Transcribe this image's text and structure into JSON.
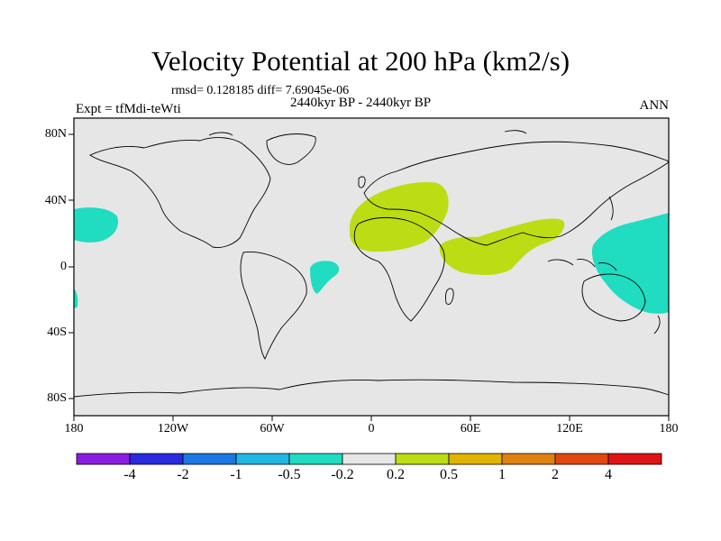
{
  "title": "Velocity Potential at 200 hPa (km2/s)",
  "stats": "rmsd= 0.128185 diff= 7.69045e-06",
  "subtitle": "2440kyr BP - 2440kyr BP",
  "expt": "Expt = tfMdi-teWti",
  "season": "ANN",
  "y_ticks": [
    "80N",
    "40N",
    "0",
    "40S",
    "80S"
  ],
  "x_ticks": [
    "180",
    "120W",
    "60W",
    "0",
    "60E",
    "120E",
    "180"
  ],
  "colorbar": {
    "colors": [
      "#8a1ee0",
      "#2a2ae0",
      "#1a78e0",
      "#20b6e6",
      "#20dcc0",
      "#e6e6e6",
      "#bcdc14",
      "#e0b400",
      "#e08210",
      "#e04810",
      "#e01414"
    ],
    "labels": [
      "-4",
      "-2",
      "-1",
      "-0.5",
      "-0.2",
      "0.2",
      "0.5",
      "1",
      "2",
      "4"
    ]
  },
  "map": {
    "ocean_color": "#e6e6e6",
    "regions": [
      {
        "name": "positive-anomaly-europe-africa",
        "color": "#bcdc14"
      },
      {
        "name": "positive-anomaly-india",
        "color": "#bcdc14"
      },
      {
        "name": "negative-anomaly-pacific-west",
        "color": "#20dcc0"
      },
      {
        "name": "negative-anomaly-atlantic",
        "color": "#20dcc0"
      },
      {
        "name": "negative-anomaly-australia",
        "color": "#20dcc0"
      }
    ]
  }
}
